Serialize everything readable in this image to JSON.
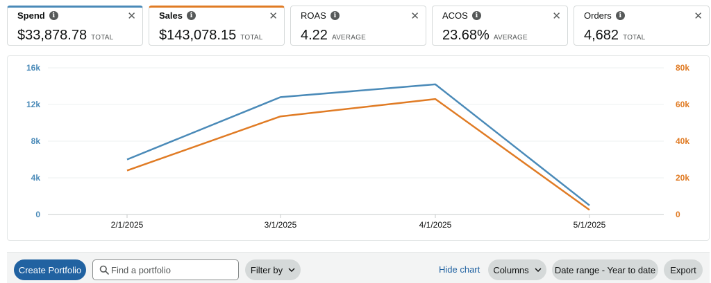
{
  "metrics": [
    {
      "name": "Spend",
      "value": "$33,878.78",
      "sub": "TOTAL",
      "active": true,
      "color": "#4a8ab8"
    },
    {
      "name": "Sales",
      "value": "$143,078.15",
      "sub": "TOTAL",
      "active": true,
      "color": "#e07b24"
    },
    {
      "name": "ROAS",
      "value": "4.22",
      "sub": "AVERAGE",
      "active": false
    },
    {
      "name": "ACOS",
      "value": "23.68%",
      "sub": "AVERAGE",
      "active": false
    },
    {
      "name": "Orders",
      "value": "4,682",
      "sub": "TOTAL",
      "active": false
    }
  ],
  "icons": {
    "info": "info-icon",
    "close": "close-icon",
    "search": "search-icon",
    "chevron": "chevron-down-icon"
  },
  "chart_data": {
    "type": "line",
    "x": [
      "2/1/2025",
      "3/1/2025",
      "4/1/2025",
      "5/1/2025"
    ],
    "series": [
      {
        "name": "Spend",
        "axis": "left",
        "color": "#4a8ab8",
        "values": [
          6000,
          12800,
          14200,
          1000
        ]
      },
      {
        "name": "Sales",
        "axis": "right",
        "color": "#e07b24",
        "values": [
          24000,
          53500,
          63000,
          2500
        ]
      }
    ],
    "y_left": {
      "ticks": [
        "0",
        "4k",
        "8k",
        "12k",
        "16k"
      ],
      "ylim": [
        0,
        16000
      ],
      "color": "#4a8ab8"
    },
    "y_right": {
      "ticks": [
        "0",
        "20k",
        "40k",
        "60k",
        "80k"
      ],
      "ylim": [
        0,
        80000
      ],
      "color": "#e07b24"
    },
    "grid": true
  },
  "toolbar": {
    "create_label": "Create Portfolio",
    "search_placeholder": "Find a portfolio",
    "filter_label": "Filter by",
    "hide_chart_label": "Hide chart",
    "columns_label": "Columns",
    "date_range_label": "Date range - Year to date",
    "export_label": "Export"
  }
}
